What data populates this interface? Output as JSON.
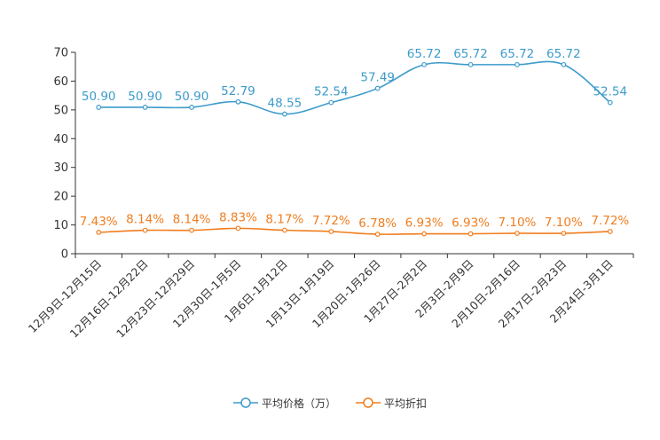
{
  "chart_data": {
    "type": "line",
    "title": "",
    "xlabel": "",
    "ylabel": "",
    "ylim": [
      0,
      70
    ],
    "yticks": [
      0,
      10,
      20,
      30,
      40,
      50,
      60,
      70
    ],
    "grid": false,
    "categories": [
      "12月9日-12月15日",
      "12月16日-12月22日",
      "12月23日-12月29日",
      "12月30日-1月5日",
      "1月6日-1月12日",
      "1月13日-1月19日",
      "1月20日-1月26日",
      "1月27日-2月2日",
      "2月3日-2月9日",
      "2月10日-2月16日",
      "2月17日-2月23日",
      "2月24日-3月1日"
    ],
    "series": [
      {
        "name": "平均价格（万）",
        "color": "#3d9bcb",
        "values": [
          50.9,
          50.9,
          50.9,
          52.79,
          48.55,
          52.54,
          57.49,
          65.72,
          65.72,
          65.72,
          65.72,
          52.54
        ],
        "labels": [
          "50.90",
          "50.90",
          "50.90",
          "52.79",
          "48.55",
          "52.54",
          "57.49",
          "65.72",
          "65.72",
          "65.72",
          "65.72",
          "52.54"
        ]
      },
      {
        "name": "平均折扣",
        "color": "#f07d1e",
        "values": [
          7.43,
          8.14,
          8.14,
          8.83,
          8.17,
          7.72,
          6.78,
          6.93,
          6.93,
          7.1,
          7.1,
          7.72
        ],
        "labels": [
          "7.43%",
          "8.14%",
          "8.14%",
          "8.83%",
          "8.17%",
          "7.72%",
          "6.78%",
          "6.93%",
          "6.93%",
          "7.10%",
          "7.10%",
          "7.72%"
        ]
      }
    ],
    "legend_position": "bottom-center"
  }
}
